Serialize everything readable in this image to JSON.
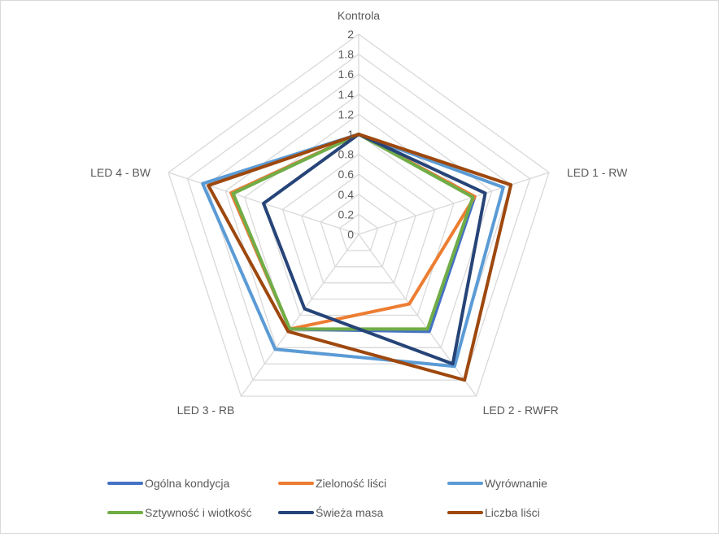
{
  "chart_data": {
    "type": "radar",
    "axes": [
      "Kontrola",
      "LED 1 - RW",
      "LED 2 - RWFR",
      "LED 3 - RB",
      "LED 4 - BW"
    ],
    "ticks": [
      "0",
      "0.2",
      "0.4",
      "0.6",
      "0.8",
      "1",
      "1.2",
      "1.4",
      "1.6",
      "1.8",
      "2"
    ],
    "rlim": [
      0,
      2
    ],
    "grid": true,
    "legend_position": "bottom",
    "series": [
      {
        "name": "Ogólna kondycja",
        "color": "#4472C4",
        "values": [
          1,
          1.22,
          1.2,
          1.17,
          1.34
        ]
      },
      {
        "name": "Zieloność liści",
        "color": "#ED7D31",
        "values": [
          1,
          1.22,
          0.86,
          1.17,
          1.34
        ]
      },
      {
        "name": "Wyrównanie",
        "color": "#5B9BD5",
        "values": [
          1,
          1.52,
          1.63,
          1.42,
          1.64
        ]
      },
      {
        "name": "Sztywność i wiotkość",
        "color": "#70AD47",
        "values": [
          1,
          1.2,
          1.17,
          1.17,
          1.32
        ]
      },
      {
        "name": "Świeża masa",
        "color": "#264478",
        "values": [
          1,
          1.33,
          1.6,
          0.92,
          1.0
        ]
      },
      {
        "name": "Liczba liści",
        "color": "#9E480E",
        "values": [
          1,
          1.6,
          1.8,
          1.2,
          1.58
        ]
      }
    ]
  }
}
